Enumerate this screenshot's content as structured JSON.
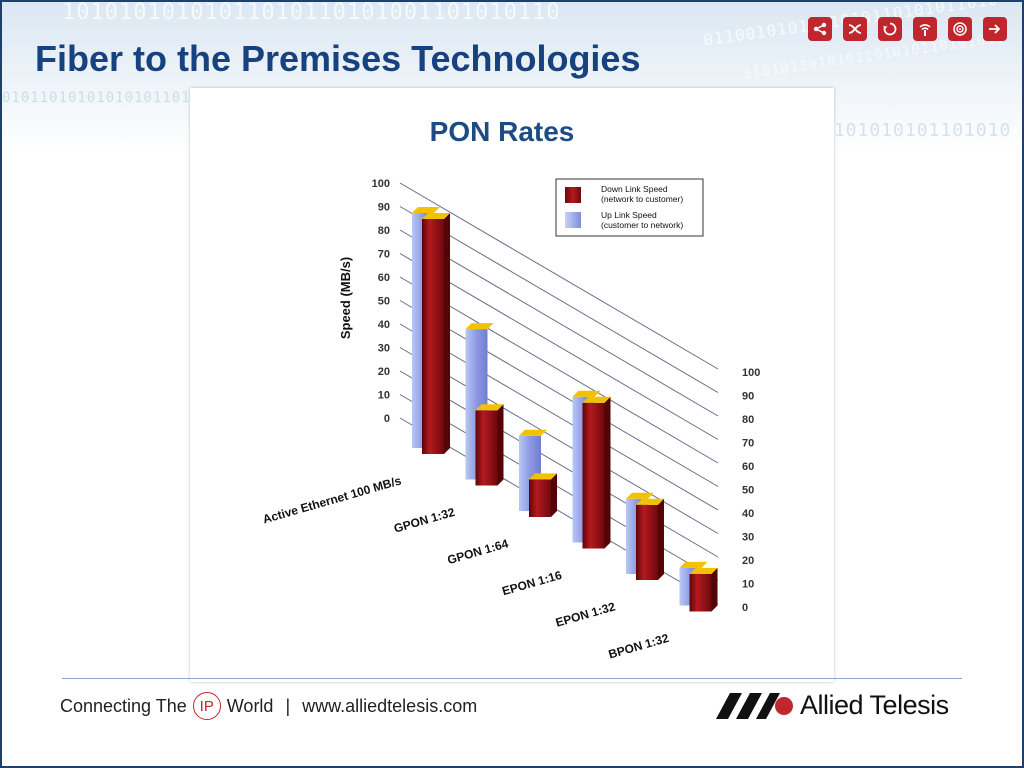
{
  "slide": {
    "title": "Fiber to the Premises Technologies",
    "header_icons": [
      "share-icon",
      "shuffle-icon",
      "refresh-icon",
      "wireless-icon",
      "target-icon",
      "forward-icon"
    ],
    "accent_color": "#c0262d",
    "title_color": "#17427f"
  },
  "footer": {
    "connecting_pre": "Connecting The",
    "ip": "IP",
    "connecting_post": "World",
    "separator": "|",
    "url": "www.alliedtelesis.com",
    "brand": "Allied Telesis"
  },
  "chart_data": {
    "type": "bar",
    "title": "PON Rates",
    "ylabel": "Speed (MB/s)",
    "xlabel": "",
    "ylim": [
      0,
      100
    ],
    "yticks": [
      0,
      10,
      20,
      30,
      40,
      50,
      60,
      70,
      80,
      90,
      100
    ],
    "grid": true,
    "legend_position": "top-right",
    "categories": [
      "Active Ethernet 100 MB/s",
      "GPON 1:32",
      "GPON 1:64",
      "EPON 1:16",
      "EPON 1:32",
      "BPON 1:32"
    ],
    "series": [
      {
        "name": "Down Link Speed (network to customer)",
        "legend_line1": "Down Link Speed",
        "legend_line2": "(network to customer)",
        "color": "#8e0d12",
        "values": [
          100,
          32,
          16,
          62,
          32,
          16
        ]
      },
      {
        "name": "Up Link Speed (customer to network)",
        "legend_line1": "Up Link Speed",
        "legend_line2": "(customer to network)",
        "color": "#8d98e4",
        "values": [
          100,
          64,
          32,
          62,
          32,
          16
        ]
      }
    ]
  }
}
